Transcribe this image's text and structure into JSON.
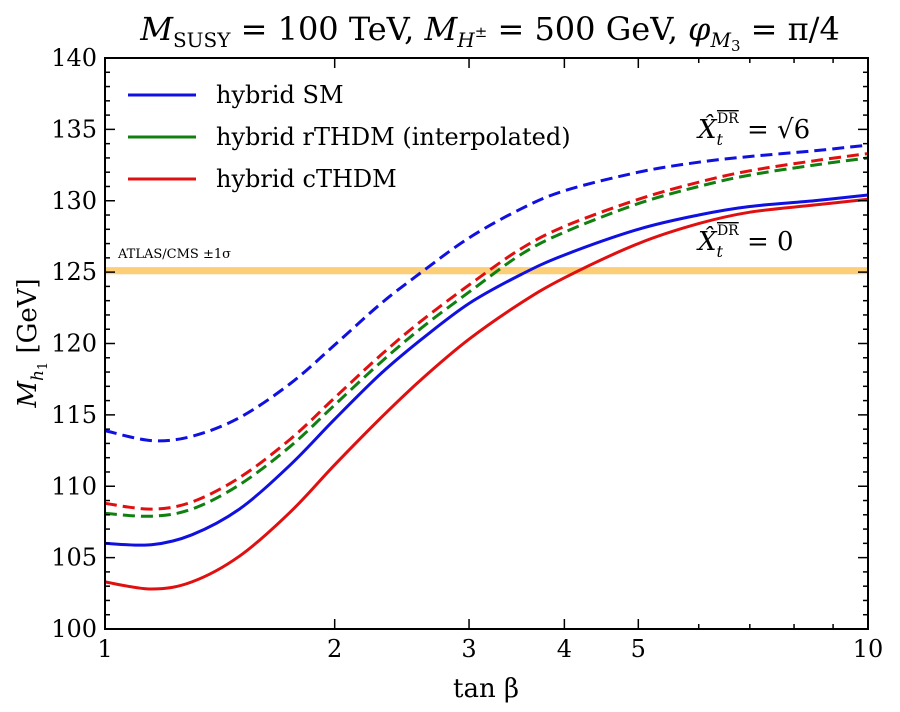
{
  "chart_data": {
    "type": "line",
    "title": "M_SUSY = 100 TeV, M_H± = 500 GeV, φ_M3 = π/4",
    "title_parts": {
      "a": "M",
      "a_sub": "SUSY",
      "b": " = 100 TeV, ",
      "c": "M",
      "c_sub": "H",
      "c_subsup": "±",
      "d": " = 500 GeV, ",
      "e": "φ",
      "e_sub": "M",
      "e_subsub": "3",
      "f": " = π/4"
    },
    "xlabel": "tan β",
    "ylabel": "M_h1 [GeV]",
    "ylabel_parts": {
      "main": "M",
      "sub": "h",
      "subsub": "1",
      "unit": " [GeV]"
    },
    "xscale": "log",
    "xlim": [
      1,
      10
    ],
    "ylim": [
      100,
      140
    ],
    "x_ticks": [
      1,
      2,
      3,
      4,
      5,
      10
    ],
    "x_tick_labels": [
      "1",
      "2",
      "3",
      "4",
      "5",
      "10"
    ],
    "y_ticks": [
      100,
      105,
      110,
      115,
      120,
      125,
      130,
      135,
      140
    ],
    "y_tick_labels": [
      "100",
      "105",
      "110",
      "115",
      "120",
      "125",
      "130",
      "135",
      "140"
    ],
    "band": {
      "label": "ATLAS/CMS ±1σ",
      "y_range": [
        124.85,
        125.35
      ],
      "color": "#fbbe4a"
    },
    "legend": {
      "position": "top-left",
      "entries": [
        {
          "label": "hybrid SM",
          "color": "#1010e0"
        },
        {
          "label": "hybrid rTHDM (interpolated)",
          "color": "#108010"
        },
        {
          "label": "hybrid cTHDM",
          "color": "#e01010"
        }
      ]
    },
    "annotations": [
      {
        "id": "xt-sqrt6",
        "text": "X̂t^DR = √6",
        "main": "X̂",
        "sub": "t",
        "sup": "DR",
        "rhs": " = √6"
      },
      {
        "id": "xt-zero",
        "text": "X̂t^DR = 0",
        "main": "X̂",
        "sub": "t",
        "sup": "DR",
        "rhs": " = 0"
      }
    ],
    "x": [
      1.0,
      1.15,
      1.3,
      1.5,
      1.75,
      2.0,
      2.3,
      2.6,
      3.0,
      3.5,
      4.0,
      5.0,
      6.0,
      7.0,
      8.5,
      10.0
    ],
    "series": [
      {
        "name": "hybrid SM",
        "case": "Xt = √6",
        "style": "dashed",
        "color": "#1010e0",
        "values": [
          113.9,
          113.2,
          113.5,
          114.8,
          117.2,
          119.9,
          122.8,
          125.0,
          127.4,
          129.4,
          130.7,
          132.0,
          132.7,
          133.1,
          133.5,
          133.9
        ]
      },
      {
        "name": "hybrid rTHDM (interpolated)",
        "case": "Xt = √6",
        "style": "dashed",
        "color": "#108010",
        "values": [
          108.1,
          107.9,
          108.4,
          110.1,
          112.8,
          115.7,
          118.7,
          121.1,
          123.6,
          126.2,
          127.8,
          129.8,
          131.0,
          131.8,
          132.5,
          133.0
        ]
      },
      {
        "name": "hybrid cTHDM",
        "case": "Xt = √6",
        "style": "dashed",
        "color": "#e01010",
        "values": [
          108.8,
          108.4,
          108.9,
          110.6,
          113.3,
          116.2,
          119.2,
          121.6,
          124.1,
          126.6,
          128.2,
          130.1,
          131.3,
          132.1,
          132.8,
          133.3
        ]
      },
      {
        "name": "hybrid SM",
        "case": "Xt = 0",
        "style": "solid",
        "color": "#1010e0",
        "values": [
          106.0,
          105.9,
          106.6,
          108.4,
          111.5,
          114.7,
          117.9,
          120.3,
          122.8,
          124.8,
          126.2,
          128.0,
          129.0,
          129.6,
          130.0,
          130.4
        ]
      },
      {
        "name": "hybrid cTHDM",
        "case": "Xt = 0",
        "style": "solid",
        "color": "#e01010",
        "values": [
          103.3,
          102.8,
          103.3,
          105.1,
          108.2,
          111.5,
          114.8,
          117.5,
          120.3,
          122.8,
          124.6,
          127.0,
          128.4,
          129.2,
          129.7,
          130.1
        ]
      }
    ]
  }
}
